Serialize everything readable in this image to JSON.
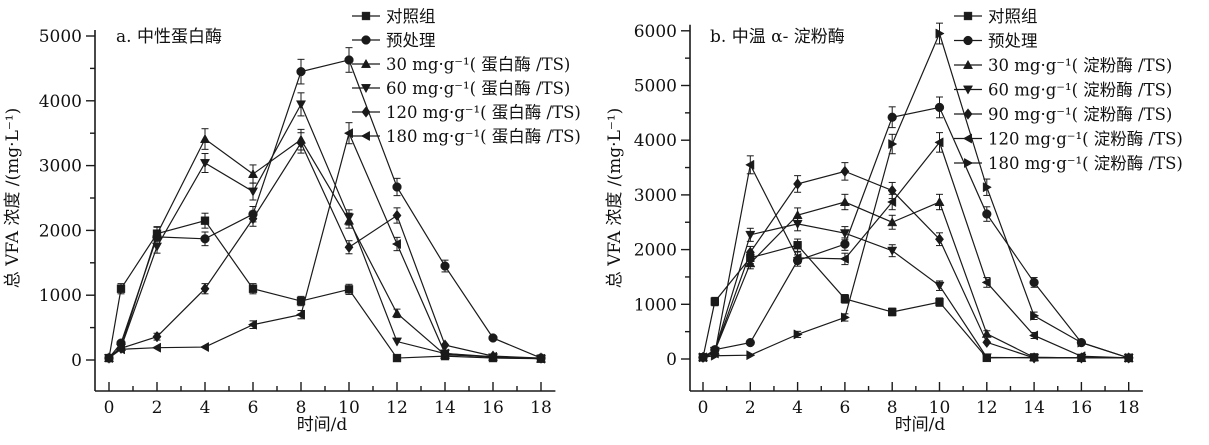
{
  "figure": {
    "background": "#ffffff",
    "line_color": "#1a1a1a",
    "text_color": "#111111"
  },
  "chart_data": [
    {
      "type": "line",
      "title": "a. 中性蛋白酶",
      "xlabel": "时间/d",
      "ylabel": "总 VFA 浓度 /(mg·L⁻¹)",
      "x": [
        0,
        0.5,
        2,
        4,
        6,
        8,
        10,
        12,
        14,
        16,
        18
      ],
      "xticks": [
        0,
        2,
        4,
        6,
        8,
        10,
        12,
        14,
        16,
        18
      ],
      "ylim": [
        0,
        5000
      ],
      "ytick_step": 1000,
      "grid": false,
      "error_bars": true,
      "legend_position": "top-right-inside",
      "series": [
        {
          "name": "对照组",
          "marker": "square",
          "values": [
            30,
            1100,
            1950,
            2150,
            1100,
            910,
            1090,
            30,
            60,
            30,
            20
          ]
        },
        {
          "name": "预处理",
          "marker": "circle",
          "values": [
            30,
            260,
            1900,
            1870,
            2250,
            4450,
            4630,
            2670,
            1450,
            340,
            30
          ]
        },
        {
          "name": "30 mg·g⁻¹( 蛋白酶 /TS)",
          "marker": "triangle-up",
          "values": [
            30,
            200,
            1940,
            3410,
            2870,
            3400,
            2150,
            720,
            80,
            50,
            20
          ]
        },
        {
          "name": "60 mg·g⁻¹( 蛋白酶 /TS)",
          "marker": "triangle-down",
          "values": [
            30,
            190,
            1750,
            3040,
            2600,
            3945,
            2200,
            285,
            100,
            40,
            20
          ]
        },
        {
          "name": "120 mg·g⁻¹( 蛋白酶 /TS)",
          "marker": "diamond",
          "values": [
            30,
            180,
            360,
            1100,
            2180,
            3350,
            1740,
            2230,
            230,
            60,
            30
          ]
        },
        {
          "name": "180 mg·g⁻¹( 蛋白酶 /TS)",
          "marker": "triangle-left",
          "values": [
            30,
            165,
            190,
            200,
            545,
            700,
            3500,
            1790,
            100,
            50,
            20
          ]
        }
      ]
    },
    {
      "type": "line",
      "title": "b. 中温 α- 淀粉酶",
      "xlabel": "时间/d",
      "ylabel": "总 VFA 浓度 /(mg·L⁻¹)",
      "x": [
        0,
        0.5,
        2,
        4,
        6,
        8,
        10,
        12,
        14,
        16,
        18
      ],
      "xticks": [
        0,
        2,
        4,
        6,
        8,
        10,
        12,
        14,
        16,
        18
      ],
      "ylim": [
        0,
        6000
      ],
      "ytick_step": 1000,
      "grid": false,
      "error_bars": true,
      "legend_position": "top-right-inside",
      "series": [
        {
          "name": "对照组",
          "marker": "square",
          "values": [
            30,
            1050,
            1850,
            2080,
            1100,
            860,
            1040,
            20,
            30,
            20,
            20
          ]
        },
        {
          "name": "预处理",
          "marker": "circle",
          "values": [
            30,
            170,
            300,
            1800,
            2100,
            4420,
            4600,
            2650,
            1400,
            300,
            20
          ]
        },
        {
          "name": "30 mg·g⁻¹( 淀粉酶 /TS)",
          "marker": "triangle-up",
          "values": [
            30,
            150,
            1750,
            2630,
            2870,
            2500,
            2870,
            460,
            30,
            20,
            20
          ]
        },
        {
          "name": "60 mg·g⁻¹( 淀粉酶 /TS)",
          "marker": "triangle-down",
          "values": [
            30,
            150,
            2270,
            2470,
            2300,
            1980,
            1340,
            30,
            20,
            20,
            20
          ]
        },
        {
          "name": "90 mg·g⁻¹( 淀粉酶 /TS)",
          "marker": "diamond",
          "values": [
            30,
            150,
            1950,
            3200,
            3430,
            3080,
            2190,
            305,
            20,
            20,
            20
          ]
        },
        {
          "name": "120 mg·g⁻¹( 淀粉酶 /TS)",
          "marker": "triangle-left",
          "values": [
            30,
            100,
            3550,
            1850,
            1830,
            2870,
            3960,
            1400,
            430,
            50,
            20
          ]
        },
        {
          "name": "180 mg·g⁻¹( 淀粉酶 /TS)",
          "marker": "triangle-right",
          "values": [
            30,
            60,
            70,
            450,
            760,
            3930,
            5950,
            3140,
            790,
            300,
            20
          ]
        }
      ]
    }
  ]
}
